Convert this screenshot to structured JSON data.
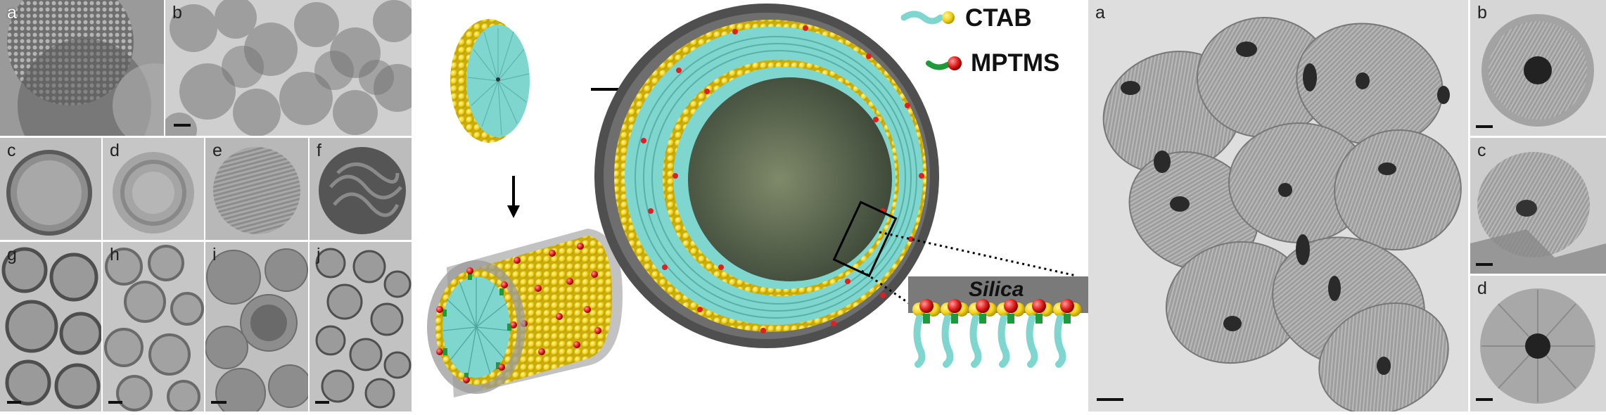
{
  "left_figure": {
    "panels": [
      {
        "label": "a"
      },
      {
        "label": "b"
      },
      {
        "label": "c"
      },
      {
        "label": "d"
      },
      {
        "label": "e"
      },
      {
        "label": "f"
      },
      {
        "label": "g"
      },
      {
        "label": "h"
      },
      {
        "label": "i"
      },
      {
        "label": "j"
      }
    ]
  },
  "schematic": {
    "legend": [
      {
        "name": "CTAB",
        "icon": "ctab-molecule-icon"
      },
      {
        "name": "MPTMS",
        "icon": "mptms-molecule-icon"
      }
    ],
    "inset_label": "Silica",
    "colors": {
      "ctab_tail": "#7fd6cf",
      "ctab_head": "#f2d21a",
      "mptms_head": "#e02020",
      "mptms_tail": "#1f9a3a",
      "silica": "#6b6b6b"
    }
  },
  "right_figure": {
    "panels": [
      {
        "label": "a"
      },
      {
        "label": "b"
      },
      {
        "label": "c"
      },
      {
        "label": "d"
      }
    ]
  }
}
